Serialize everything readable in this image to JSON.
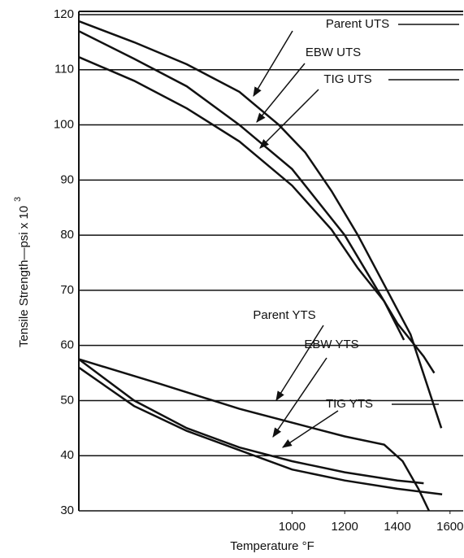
{
  "chart_data": {
    "type": "line",
    "xlabel": "Temperature °F",
    "ylabel": "Tensile Strength—psi x 10",
    "ylabel_exponent": "3",
    "xlim": [
      190,
      1650
    ],
    "ylim": [
      30,
      120
    ],
    "xticks": [
      1000,
      1200,
      1400,
      1600
    ],
    "yticks": [
      30,
      40,
      50,
      60,
      70,
      80,
      90,
      100,
      110,
      120
    ],
    "grid": true,
    "color": "#111111",
    "series": [
      {
        "name": "Parent UTS",
        "x": [
          190,
          400,
          600,
          800,
          950,
          1050,
          1150,
          1250,
          1350,
          1450,
          1567
        ],
        "values": [
          118.8,
          115,
          111,
          106,
          100,
          95,
          88,
          80,
          71,
          62,
          45
        ]
      },
      {
        "name": "EBW UTS",
        "x": [
          190,
          400,
          600,
          800,
          1000,
          1200,
          1300,
          1400,
          1500,
          1540
        ],
        "values": [
          117,
          112,
          107,
          100,
          92,
          80,
          72,
          64,
          58,
          55
        ]
      },
      {
        "name": "TIG UTS",
        "x": [
          190,
          400,
          600,
          800,
          1000,
          1150,
          1250,
          1350,
          1425
        ],
        "values": [
          112.3,
          108,
          103,
          97,
          89,
          81,
          74,
          68,
          61
        ]
      },
      {
        "name": "Parent YTS",
        "x": [
          190,
          500,
          800,
          1000,
          1200,
          1350,
          1420,
          1480,
          1520
        ],
        "values": [
          57.5,
          53,
          48.5,
          46,
          43.5,
          42,
          39,
          34,
          30
        ]
      },
      {
        "name": "EBW YTS",
        "x": [
          190,
          400,
          600,
          800,
          1000,
          1200,
          1400,
          1500
        ],
        "values": [
          57.5,
          50,
          45,
          41.5,
          39,
          37,
          35.5,
          35
        ]
      },
      {
        "name": "TIG YTS",
        "x": [
          190,
          400,
          600,
          800,
          1000,
          1200,
          1400,
          1570
        ],
        "values": [
          56,
          49,
          44.5,
          41,
          37.5,
          35.5,
          34,
          33
        ]
      }
    ]
  }
}
